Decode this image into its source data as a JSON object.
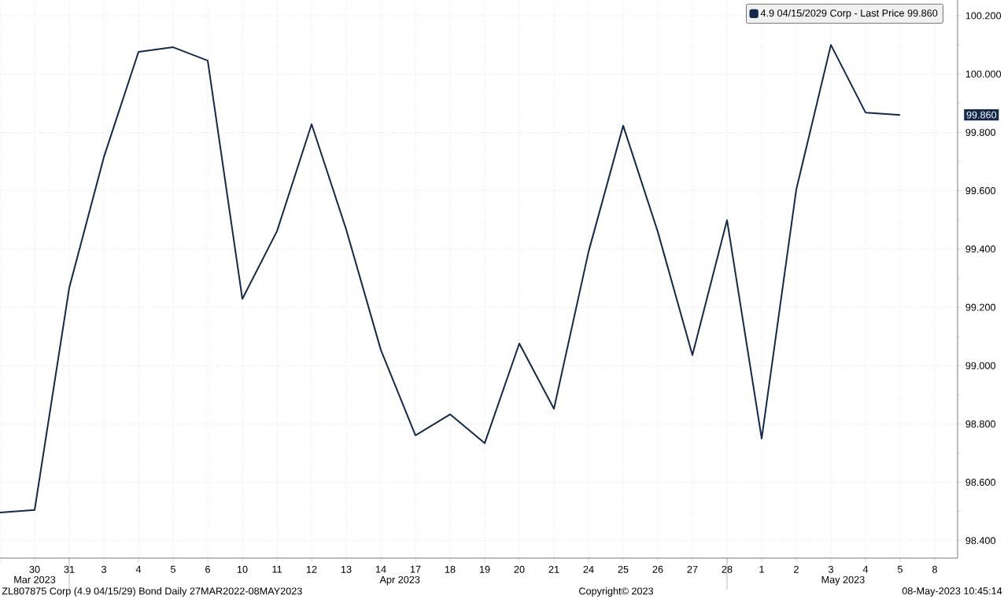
{
  "chart_data": {
    "type": "line",
    "categories": [
      null,
      "30",
      "31",
      "3",
      "4",
      "5",
      "6",
      "10",
      "11",
      "12",
      "13",
      "14",
      "17",
      "18",
      "19",
      "20",
      "21",
      "24",
      "25",
      "26",
      "27",
      "28",
      "1",
      "2",
      "3",
      "4",
      "5",
      "8"
    ],
    "series": [
      {
        "name": "4.9 04/15/2029 Corp - Last Price 99.860",
        "color": "#13294b",
        "values": [
          98.496,
          98.505,
          99.267,
          99.715,
          100.076,
          100.092,
          100.046,
          99.229,
          99.461,
          99.828,
          99.467,
          99.054,
          98.761,
          98.833,
          98.734,
          99.076,
          98.852,
          99.391,
          99.823,
          99.459,
          99.036,
          99.499,
          98.75,
          99.604,
          100.1,
          99.868,
          99.86,
          null
        ]
      }
    ],
    "ylim": [
      98.34,
      100.254
    ],
    "yticks": [
      {
        "value": 98.4,
        "label": "98.400"
      },
      {
        "value": 98.5,
        "label": null
      },
      {
        "value": 98.6,
        "label": "98.600"
      },
      {
        "value": 98.7,
        "label": null
      },
      {
        "value": 98.8,
        "label": "98.800"
      },
      {
        "value": 98.9,
        "label": null
      },
      {
        "value": 99.0,
        "label": "99.000"
      },
      {
        "value": 99.1,
        "label": null
      },
      {
        "value": 99.2,
        "label": "99.200"
      },
      {
        "value": 99.3,
        "label": null
      },
      {
        "value": 99.4,
        "label": "99.400"
      },
      {
        "value": 99.5,
        "label": null
      },
      {
        "value": 99.6,
        "label": "99.600"
      },
      {
        "value": 99.7,
        "label": null
      },
      {
        "value": 99.8,
        "label": "99.800"
      },
      {
        "value": 99.9,
        "label": null
      },
      {
        "value": 100.0,
        "label": "100.000"
      },
      {
        "value": 100.1,
        "label": null
      },
      {
        "value": 100.2,
        "label": "100.200"
      }
    ],
    "grid": true,
    "legend": "top right",
    "annotations": [
      "Mar 2023",
      "Apr 2023",
      "May 2023",
      "ZL807875 Corp (4.9 04/15/29) Bond  Daily 27MAR2022-08MAY2023",
      "Copyright© 2023",
      "08-May-2023 10:45:14",
      "99.860"
    ]
  }
}
